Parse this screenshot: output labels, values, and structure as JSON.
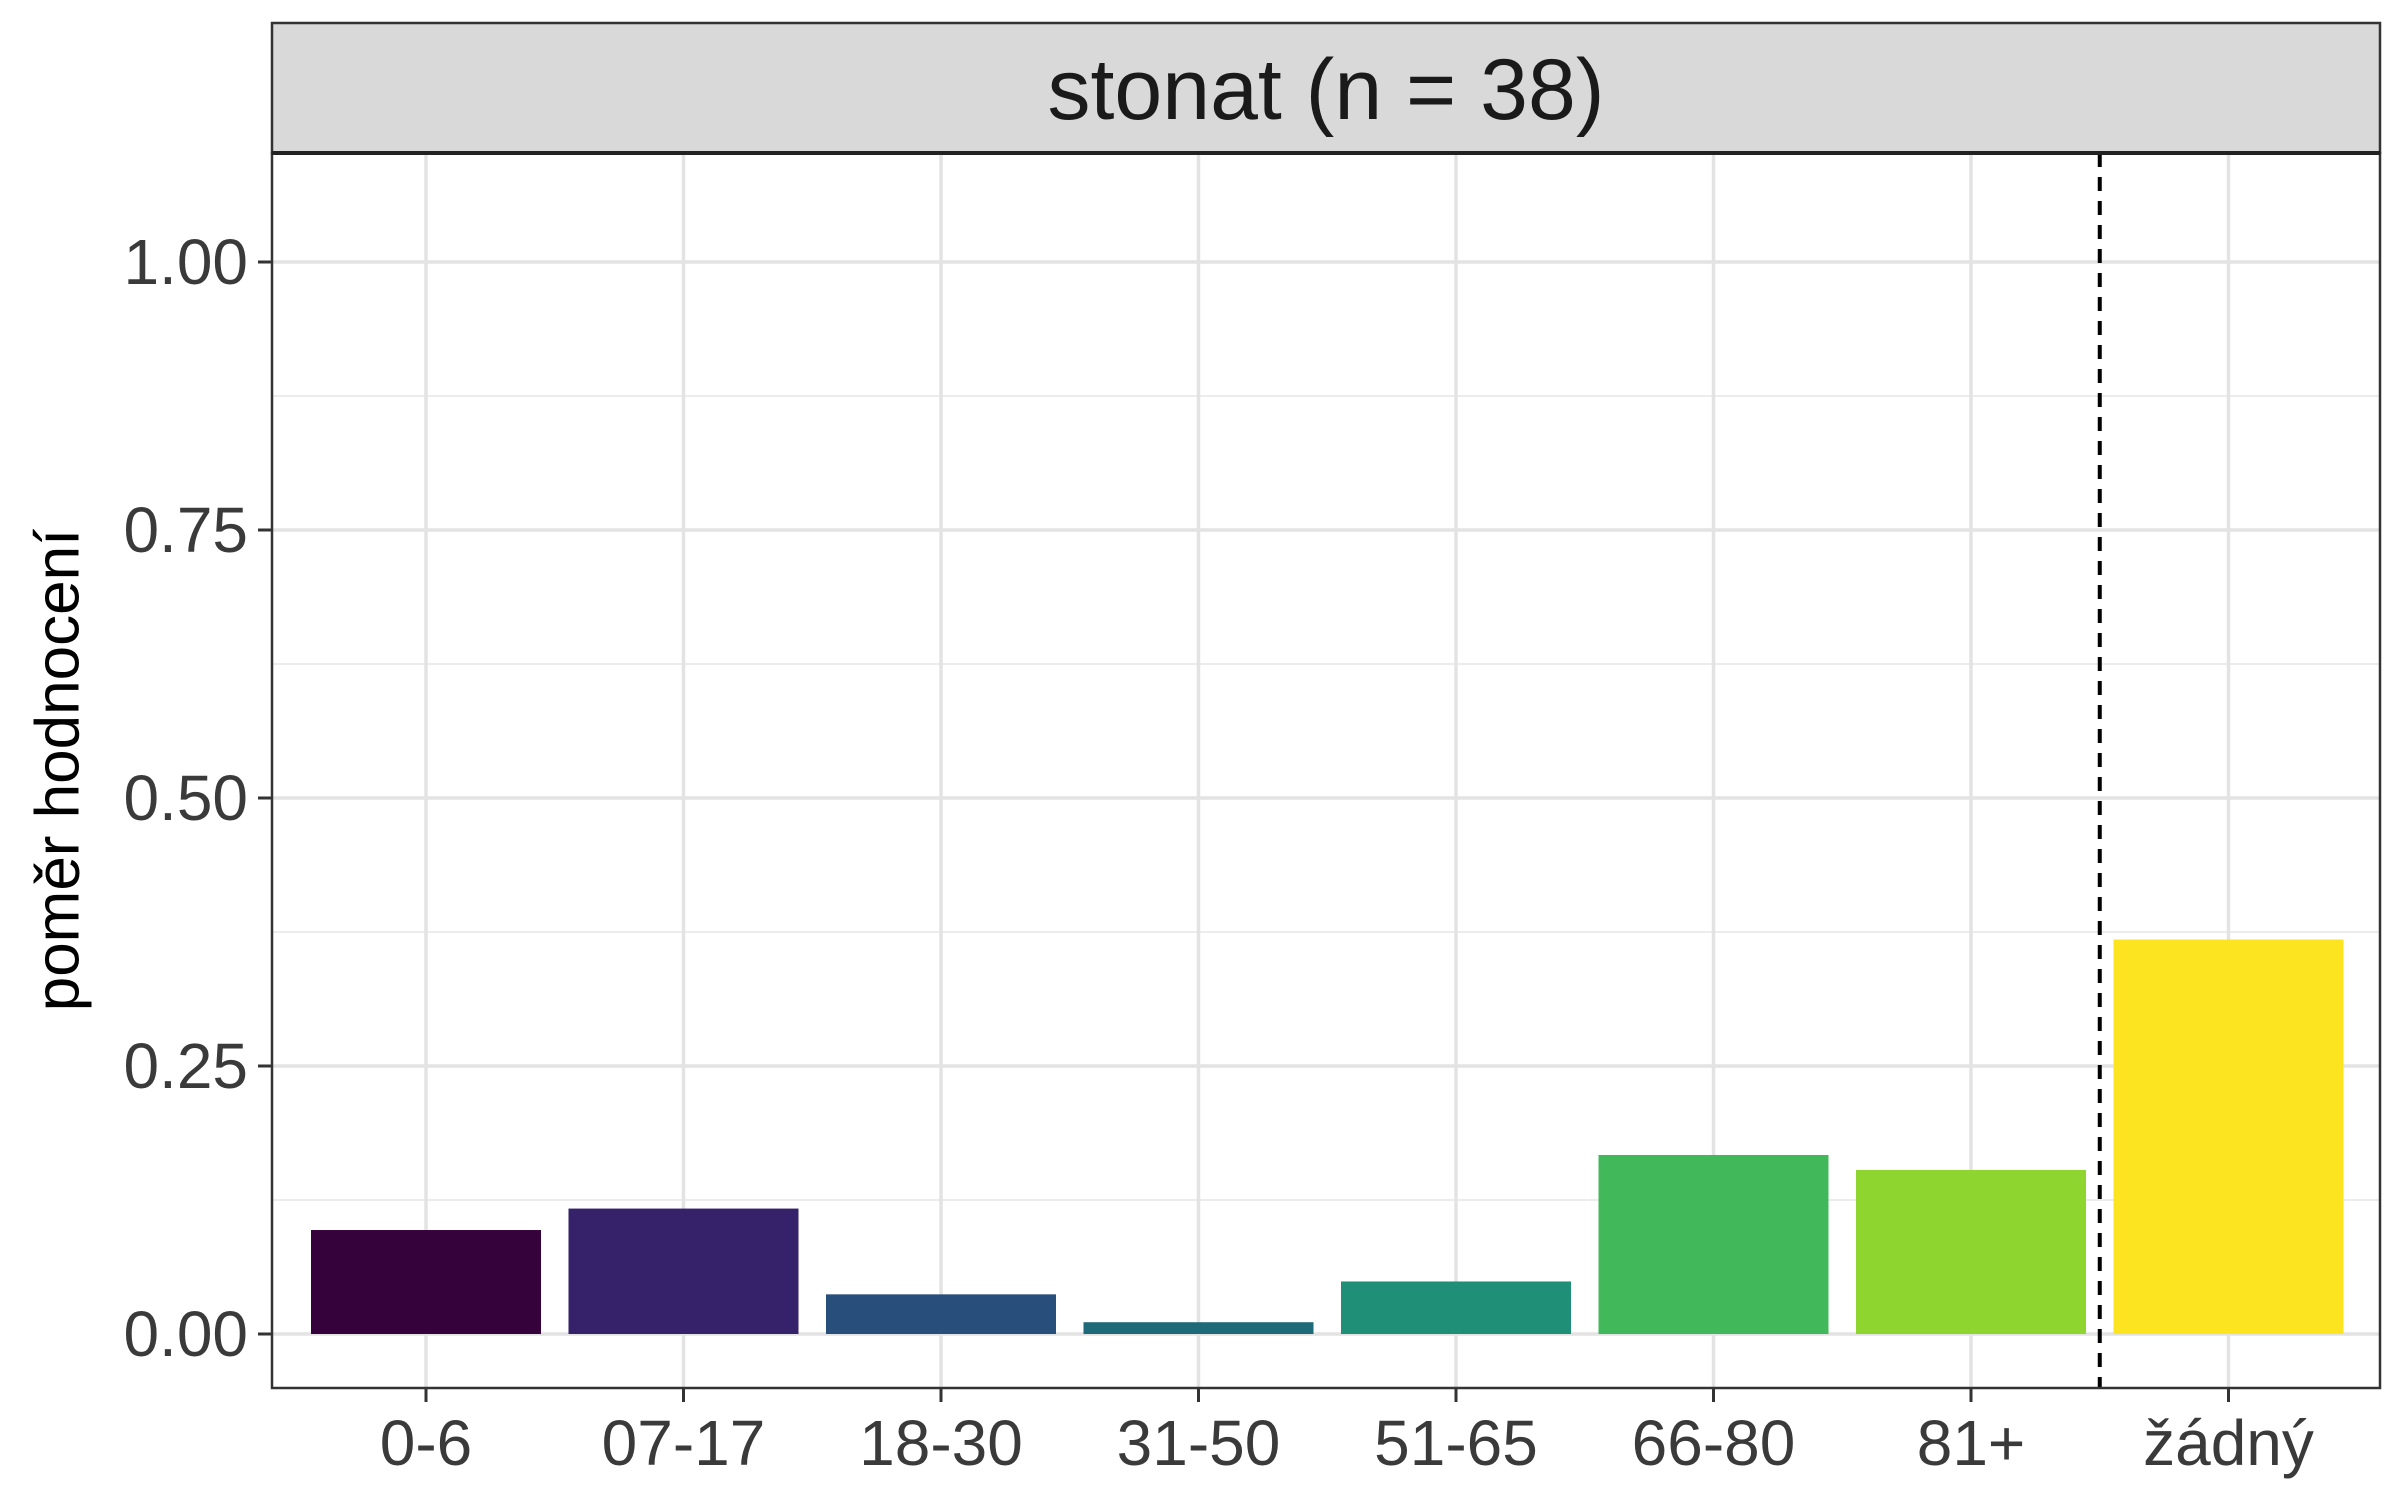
{
  "chart_data": {
    "type": "bar",
    "title": "stonat (n = 38)",
    "xlabel": "",
    "ylabel": "poměr hodnocení",
    "categories": [
      "0-6",
      "07-17",
      "18-30",
      "31-50",
      "51-65",
      "66-80",
      "81+",
      "žádný"
    ],
    "values": [
      0.097,
      0.117,
      0.037,
      0.011,
      0.049,
      0.167,
      0.153,
      0.368
    ],
    "colors": [
      "#35023c",
      "#35226a",
      "#284f7b",
      "#1f6a79",
      "#208f77",
      "#41b85a",
      "#8fd530",
      "#fde420"
    ],
    "ylim": [
      0,
      1.1
    ],
    "yticks": [
      0,
      0.25,
      0.5,
      0.75,
      1.0
    ],
    "ytick_labels": [
      "0.00",
      "0.25",
      "0.50",
      "0.75",
      "1.00"
    ],
    "grid": true,
    "reference_line": {
      "between": [
        "81+",
        "žádný"
      ],
      "style": "dashed"
    }
  }
}
